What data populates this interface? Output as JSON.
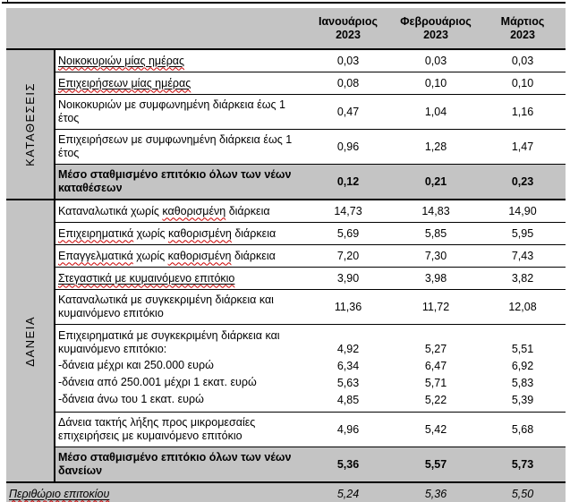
{
  "document": {
    "colors": {
      "shade": "#c4c4c4",
      "border": "#000000",
      "squiggle": "#cc0000"
    },
    "columns": [
      {
        "month": "Ιανουάριος",
        "year": "2023"
      },
      {
        "month": "Φεβρουάριος",
        "year": "2023"
      },
      {
        "month": "Μάρτιος",
        "year": "2023"
      }
    ],
    "sections": [
      {
        "name": "ΚΑΤΑΘΕΣΕΙΣ",
        "rows": [
          {
            "segments": [
              {
                "t": "Νοικοκυριών μίας ημέρας",
                "u": true,
                "sq": true
              }
            ],
            "values": [
              "0,03",
              "0,03",
              "0,03"
            ]
          },
          {
            "segments": [
              {
                "t": "Επιχειρήσεων μίας ημέρας",
                "u": true,
                "sq": true
              }
            ],
            "values": [
              "0,08",
              "0,10",
              "0,10"
            ]
          },
          {
            "segments": [
              {
                "t": "Νοικοκυριών με συμφωνημένη διάρκεια έως 1 έτος"
              }
            ],
            "values": [
              "0,47",
              "1,04",
              "1,16"
            ],
            "two": true
          },
          {
            "segments": [
              {
                "t": "Επιχειρήσεων με συμφωνημένη διάρκεια έως 1 έτος"
              }
            ],
            "values": [
              "0,96",
              "1,28",
              "1,47"
            ],
            "two": true
          },
          {
            "segments": [
              {
                "t": "Μέσο σταθμισμένο επιτόκιο όλων των νέων καταθέσεων"
              }
            ],
            "values": [
              "0,12",
              "0,21",
              "0,23"
            ],
            "bold": true,
            "shaded": true,
            "two": true
          }
        ]
      },
      {
        "name": "ΔΑΝΕΙΑ",
        "rows": [
          {
            "segments": [
              {
                "t": "Καταναλωτικά χωρίς "
              },
              {
                "t": "καθορισμένη",
                "sq": true
              },
              {
                "t": " διάρκεια"
              }
            ],
            "values": [
              "14,73",
              "14,83",
              "14,90"
            ]
          },
          {
            "segments": [
              {
                "t": "Επιχειρηματικά",
                "sq": true
              },
              {
                "t": " χωρίς "
              },
              {
                "t": "καθορισμένη",
                "sq": true
              },
              {
                "t": " διάρκεια"
              }
            ],
            "values": [
              "5,69",
              "5,85",
              "5,95"
            ]
          },
          {
            "segments": [
              {
                "t": "Επαγγελματικά",
                "sq": true
              },
              {
                "t": " χωρίς "
              },
              {
                "t": "καθορισμένη",
                "sq": true
              },
              {
                "t": " διάρκεια"
              }
            ],
            "values": [
              "7,20",
              "7,30",
              "7,43"
            ]
          },
          {
            "segments": [
              {
                "t": "Στεγαστικά με κυμαινόμενο επιτόκιο",
                "u": true,
                "sq": true
              }
            ],
            "values": [
              "3,90",
              "3,98",
              "3,82"
            ]
          },
          {
            "segments": [
              {
                "t": "Καταναλωτικά με συγκεκριμένη διάρκεια και κυμαινόμενο επιτόκιο"
              }
            ],
            "values": [
              "11,36",
              "11,72",
              "12,08"
            ],
            "two": true
          },
          {
            "subrows": [
              {
                "segments": [
                  {
                    "t": "Επιχειρηματικά με συγκεκριμένη διάρκεια και κυμαινόμενο επιτόκιο:"
                  }
                ],
                "values": [
                  "4,92",
                  "5,27",
                  "5,51"
                ]
              },
              {
                "segments": [
                  {
                    "t": "-δάνεια μέχρι και 250.000 ευρώ"
                  }
                ],
                "values": [
                  "6,34",
                  "6,47",
                  "6,92"
                ]
              },
              {
                "segments": [
                  {
                    "t": "-δάνεια από 250.001 μέχρι 1 εκατ. ευρώ"
                  }
                ],
                "values": [
                  "5,63",
                  "5,71",
                  "5,83"
                ]
              },
              {
                "segments": [
                  {
                    "t": "-δάνεια άνω του 1 εκατ. ευρώ"
                  }
                ],
                "values": [
                  "4,85",
                  "5,22",
                  "5,39"
                ]
              }
            ]
          },
          {
            "segments": [
              {
                "t": "Δάνεια τακτής λήξης προς μικρομεσαίες επιχειρήσεις με κυμαινόμενο επιτόκιο"
              }
            ],
            "values": [
              "4,96",
              "5,42",
              "5,68"
            ],
            "two": true
          },
          {
            "segments": [
              {
                "t": "Μέσο σταθμισμένο επιτόκιο όλων των νέων δανείων"
              }
            ],
            "values": [
              "5,36",
              "5,57",
              "5,73"
            ],
            "bold": true,
            "shaded": true,
            "two": true
          }
        ]
      }
    ],
    "footer": {
      "segments": [
        {
          "t": "Περιθώριο επιτοκίου",
          "u": true,
          "sq": true
        }
      ],
      "values": [
        "5,24",
        "5,36",
        "5,50"
      ],
      "italic": true,
      "shaded": true
    }
  }
}
